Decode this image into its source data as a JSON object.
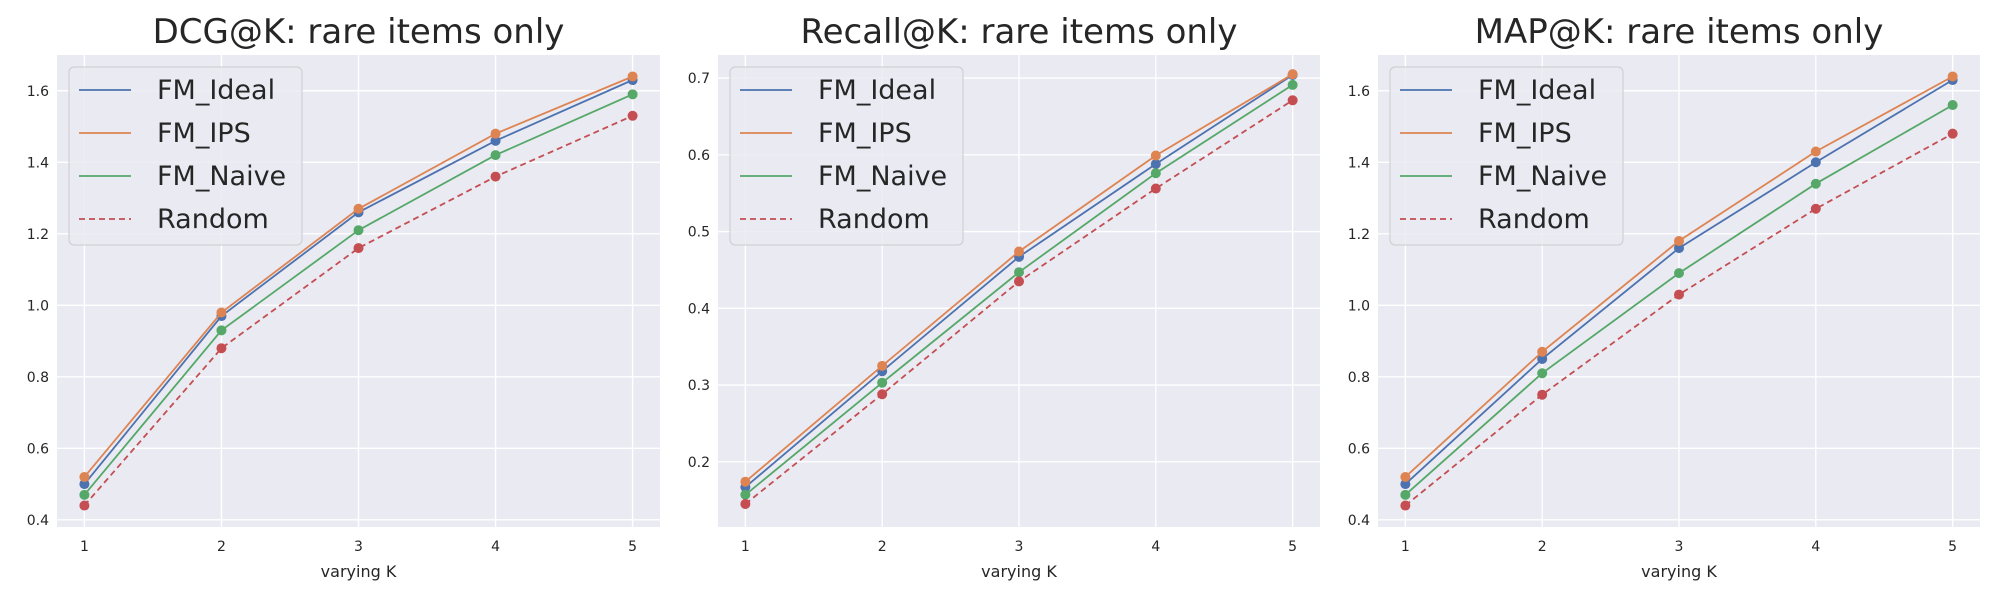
{
  "series_styles": [
    {
      "name": "FM_Ideal",
      "color": "#4c72b0",
      "dashed": false
    },
    {
      "name": "FM_IPS",
      "color": "#dd8452",
      "dashed": false
    },
    {
      "name": "FM_Naive",
      "color": "#55a868",
      "dashed": false
    },
    {
      "name": "Random",
      "color": "#c44e52",
      "dashed": true
    }
  ],
  "chart_data": [
    {
      "type": "line",
      "title": "DCG@K: rare items only",
      "xlabel": "varying K",
      "ylabel": "",
      "x": [
        1,
        2,
        3,
        4,
        5
      ],
      "ylim": [
        0.38,
        1.7
      ],
      "yticks": [
        0.4,
        0.6,
        0.8,
        1.0,
        1.2,
        1.4,
        1.6
      ],
      "ytick_labels": [
        "0.4",
        "0.6",
        "0.8",
        "1.0",
        "1.2",
        "1.4",
        "1.6"
      ],
      "grid": true,
      "legend": "top-left",
      "series": [
        {
          "name": "FM_Ideal",
          "values": [
            0.5,
            0.97,
            1.26,
            1.46,
            1.63
          ]
        },
        {
          "name": "FM_IPS",
          "values": [
            0.52,
            0.98,
            1.27,
            1.48,
            1.64
          ]
        },
        {
          "name": "FM_Naive",
          "values": [
            0.47,
            0.93,
            1.21,
            1.42,
            1.59
          ]
        },
        {
          "name": "Random",
          "values": [
            0.44,
            0.88,
            1.16,
            1.36,
            1.53
          ]
        }
      ]
    },
    {
      "type": "line",
      "title": "Recall@K: rare items only",
      "xlabel": "varying K",
      "ylabel": "",
      "x": [
        1,
        2,
        3,
        4,
        5
      ],
      "ylim": [
        0.115,
        0.73
      ],
      "yticks": [
        0.2,
        0.3,
        0.4,
        0.5,
        0.6,
        0.7
      ],
      "ytick_labels": [
        "0.2",
        "0.3",
        "0.4",
        "0.5",
        "0.6",
        "0.7"
      ],
      "grid": true,
      "legend": "top-left",
      "series": [
        {
          "name": "FM_Ideal",
          "values": [
            0.167,
            0.318,
            0.467,
            0.588,
            0.704
          ]
        },
        {
          "name": "FM_IPS",
          "values": [
            0.174,
            0.325,
            0.474,
            0.599,
            0.705
          ]
        },
        {
          "name": "FM_Naive",
          "values": [
            0.157,
            0.303,
            0.447,
            0.576,
            0.691
          ]
        },
        {
          "name": "Random",
          "values": [
            0.145,
            0.288,
            0.435,
            0.556,
            0.671
          ]
        }
      ]
    },
    {
      "type": "line",
      "title": "MAP@K: rare items only",
      "xlabel": "varying K",
      "ylabel": "",
      "x": [
        1,
        2,
        3,
        4,
        5
      ],
      "ylim": [
        0.38,
        1.7
      ],
      "yticks": [
        0.4,
        0.6,
        0.8,
        1.0,
        1.2,
        1.4,
        1.6
      ],
      "ytick_labels": [
        "0.4",
        "0.6",
        "0.8",
        "1.0",
        "1.2",
        "1.4",
        "1.6"
      ],
      "grid": true,
      "legend": "top-left",
      "series": [
        {
          "name": "FM_Ideal",
          "values": [
            0.5,
            0.85,
            1.16,
            1.4,
            1.63
          ]
        },
        {
          "name": "FM_IPS",
          "values": [
            0.52,
            0.87,
            1.18,
            1.43,
            1.64
          ]
        },
        {
          "name": "FM_Naive",
          "values": [
            0.47,
            0.81,
            1.09,
            1.34,
            1.56
          ]
        },
        {
          "name": "Random",
          "values": [
            0.44,
            0.75,
            1.03,
            1.27,
            1.48
          ]
        }
      ]
    }
  ]
}
